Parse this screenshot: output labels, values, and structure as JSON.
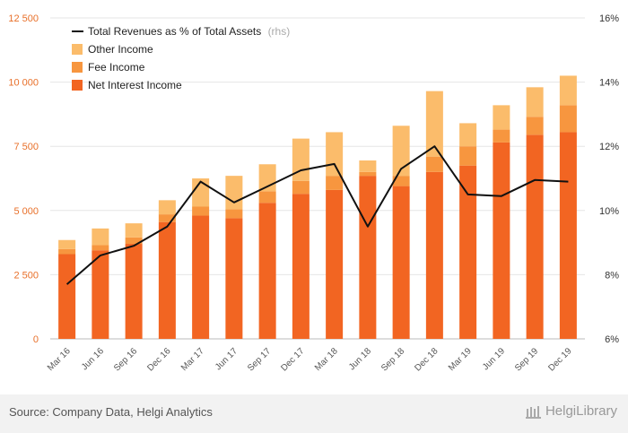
{
  "chart_data": {
    "type": "bar",
    "stacked": true,
    "categories": [
      "Mar 16",
      "Jun 16",
      "Sep 16",
      "Dec 16",
      "Mar 17",
      "Jun 17",
      "Sep 17",
      "Dec 17",
      "Mar 18",
      "Jun 18",
      "Sep 18",
      "Dec 18",
      "Mar 19",
      "Jun 19",
      "Sep 19",
      "Dec 19"
    ],
    "series": [
      {
        "name": "Net Interest Income",
        "color": "#f26522",
        "values": [
          3300,
          3450,
          3700,
          4550,
          4800,
          4700,
          5300,
          5650,
          5800,
          6350,
          5950,
          6500,
          6750,
          7650,
          7950,
          8050
        ]
      },
      {
        "name": "Fee Income",
        "color": "#f7963f",
        "values": [
          200,
          200,
          250,
          300,
          350,
          350,
          450,
          500,
          550,
          150,
          400,
          600,
          750,
          500,
          700,
          1050
        ]
      },
      {
        "name": "Other Income",
        "color": "#fbbc6b",
        "values": [
          350,
          650,
          550,
          550,
          1100,
          1300,
          1050,
          1650,
          1700,
          450,
          1950,
          2550,
          900,
          950,
          1150,
          1150
        ]
      }
    ],
    "line": {
      "name": "Total Revenues as % of Total Assets",
      "axis": "rhs",
      "color": "#111111",
      "values": [
        7.7,
        8.6,
        8.9,
        9.5,
        10.9,
        10.25,
        10.75,
        11.25,
        11.45,
        9.5,
        11.3,
        12.0,
        10.5,
        10.45,
        10.95,
        10.9
      ]
    },
    "yleft": {
      "ylim": [
        0,
        12500
      ],
      "ticks": [
        0,
        2500,
        5000,
        7500,
        10000,
        12500
      ],
      "tick_labels": [
        "0",
        "2 500",
        "5 000",
        "7 500",
        "10 000",
        "12 500"
      ]
    },
    "yright": {
      "ylim": [
        6,
        16
      ],
      "ticks": [
        6,
        8,
        10,
        12,
        14,
        16
      ],
      "tick_labels": [
        "6%",
        "8%",
        "10%",
        "12%",
        "14%",
        "16%"
      ]
    },
    "legend": {
      "position": "top-left",
      "line_label": "Total Revenues as % of Total Assets",
      "rhs_tag": "(rhs)",
      "items": [
        "Other Income",
        "Fee Income",
        "Net Interest Income"
      ]
    },
    "grid": true
  },
  "footer": {
    "source": "Source: Company Data, Helgi Analytics",
    "logo_brand": "Helgi",
    "logo_suffix": "Library"
  }
}
